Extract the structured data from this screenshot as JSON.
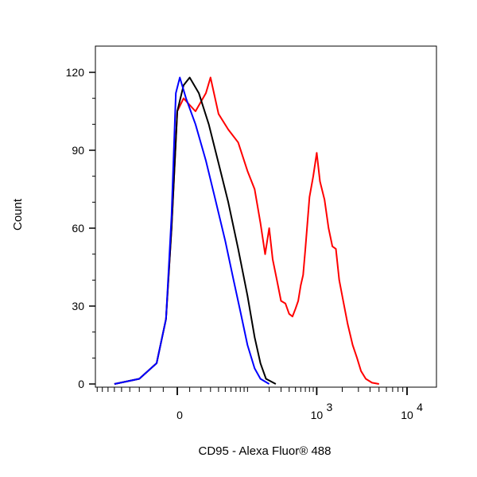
{
  "chart_data": {
    "type": "line",
    "title": "",
    "xlabel": "CD95 - Alexa Fluor® 488",
    "ylabel": "Count",
    "x_scale": "biexponential",
    "xlim": [
      -150,
      20000
    ],
    "ylim": [
      0,
      130
    ],
    "grid": false,
    "legend": "none",
    "x_ticks": [
      {
        "value": 0,
        "label": "0",
        "superscript": ""
      },
      {
        "value": 1000,
        "label": "10",
        "superscript": "3"
      },
      {
        "value": 10000,
        "label": "10",
        "superscript": "4"
      }
    ],
    "y_ticks": [
      0,
      30,
      60,
      90,
      120
    ],
    "series": [
      {
        "color": "#ff0000",
        "points": [
          [
            -60,
            0
          ],
          [
            -30,
            2
          ],
          [
            -15,
            8
          ],
          [
            -8,
            25
          ],
          [
            -4,
            60
          ],
          [
            0,
            105
          ],
          [
            5,
            110
          ],
          [
            15,
            105
          ],
          [
            25,
            112
          ],
          [
            30,
            118
          ],
          [
            40,
            104
          ],
          [
            55,
            98
          ],
          [
            75,
            93
          ],
          [
            100,
            82
          ],
          [
            125,
            75
          ],
          [
            150,
            62
          ],
          [
            175,
            50
          ],
          [
            200,
            60
          ],
          [
            225,
            48
          ],
          [
            260,
            40
          ],
          [
            300,
            32
          ],
          [
            350,
            31
          ],
          [
            400,
            27
          ],
          [
            450,
            26
          ],
          [
            500,
            29
          ],
          [
            550,
            32
          ],
          [
            600,
            38
          ],
          [
            650,
            42
          ],
          [
            700,
            52
          ],
          [
            750,
            62
          ],
          [
            800,
            72
          ],
          [
            900,
            80
          ],
          [
            1000,
            89
          ],
          [
            1100,
            78
          ],
          [
            1250,
            71
          ],
          [
            1400,
            60
          ],
          [
            1550,
            53
          ],
          [
            1700,
            52
          ],
          [
            1850,
            40
          ],
          [
            2050,
            32
          ],
          [
            2300,
            23
          ],
          [
            2600,
            15
          ],
          [
            2900,
            10
          ],
          [
            3200,
            5
          ],
          [
            3600,
            2
          ],
          [
            4200,
            0.5
          ],
          [
            5000,
            0
          ]
        ]
      },
      {
        "color": "#000000",
        "points": [
          [
            -60,
            0
          ],
          [
            -30,
            2
          ],
          [
            -15,
            8
          ],
          [
            -8,
            25
          ],
          [
            -4,
            60
          ],
          [
            0,
            105
          ],
          [
            5,
            115
          ],
          [
            10,
            118
          ],
          [
            18,
            112
          ],
          [
            28,
            100
          ],
          [
            40,
            85
          ],
          [
            55,
            70
          ],
          [
            75,
            52
          ],
          [
            100,
            34
          ],
          [
            125,
            18
          ],
          [
            150,
            8
          ],
          [
            180,
            2
          ],
          [
            250,
            0
          ]
        ]
      },
      {
        "color": "#0000ff",
        "points": [
          [
            -60,
            0
          ],
          [
            -30,
            2
          ],
          [
            -15,
            8
          ],
          [
            -8,
            25
          ],
          [
            -4,
            65
          ],
          [
            -1,
            112
          ],
          [
            2,
            118
          ],
          [
            7,
            110
          ],
          [
            15,
            100
          ],
          [
            25,
            86
          ],
          [
            35,
            72
          ],
          [
            50,
            55
          ],
          [
            65,
            40
          ],
          [
            80,
            28
          ],
          [
            100,
            15
          ],
          [
            125,
            6
          ],
          [
            150,
            2
          ],
          [
            200,
            0
          ]
        ]
      }
    ]
  }
}
